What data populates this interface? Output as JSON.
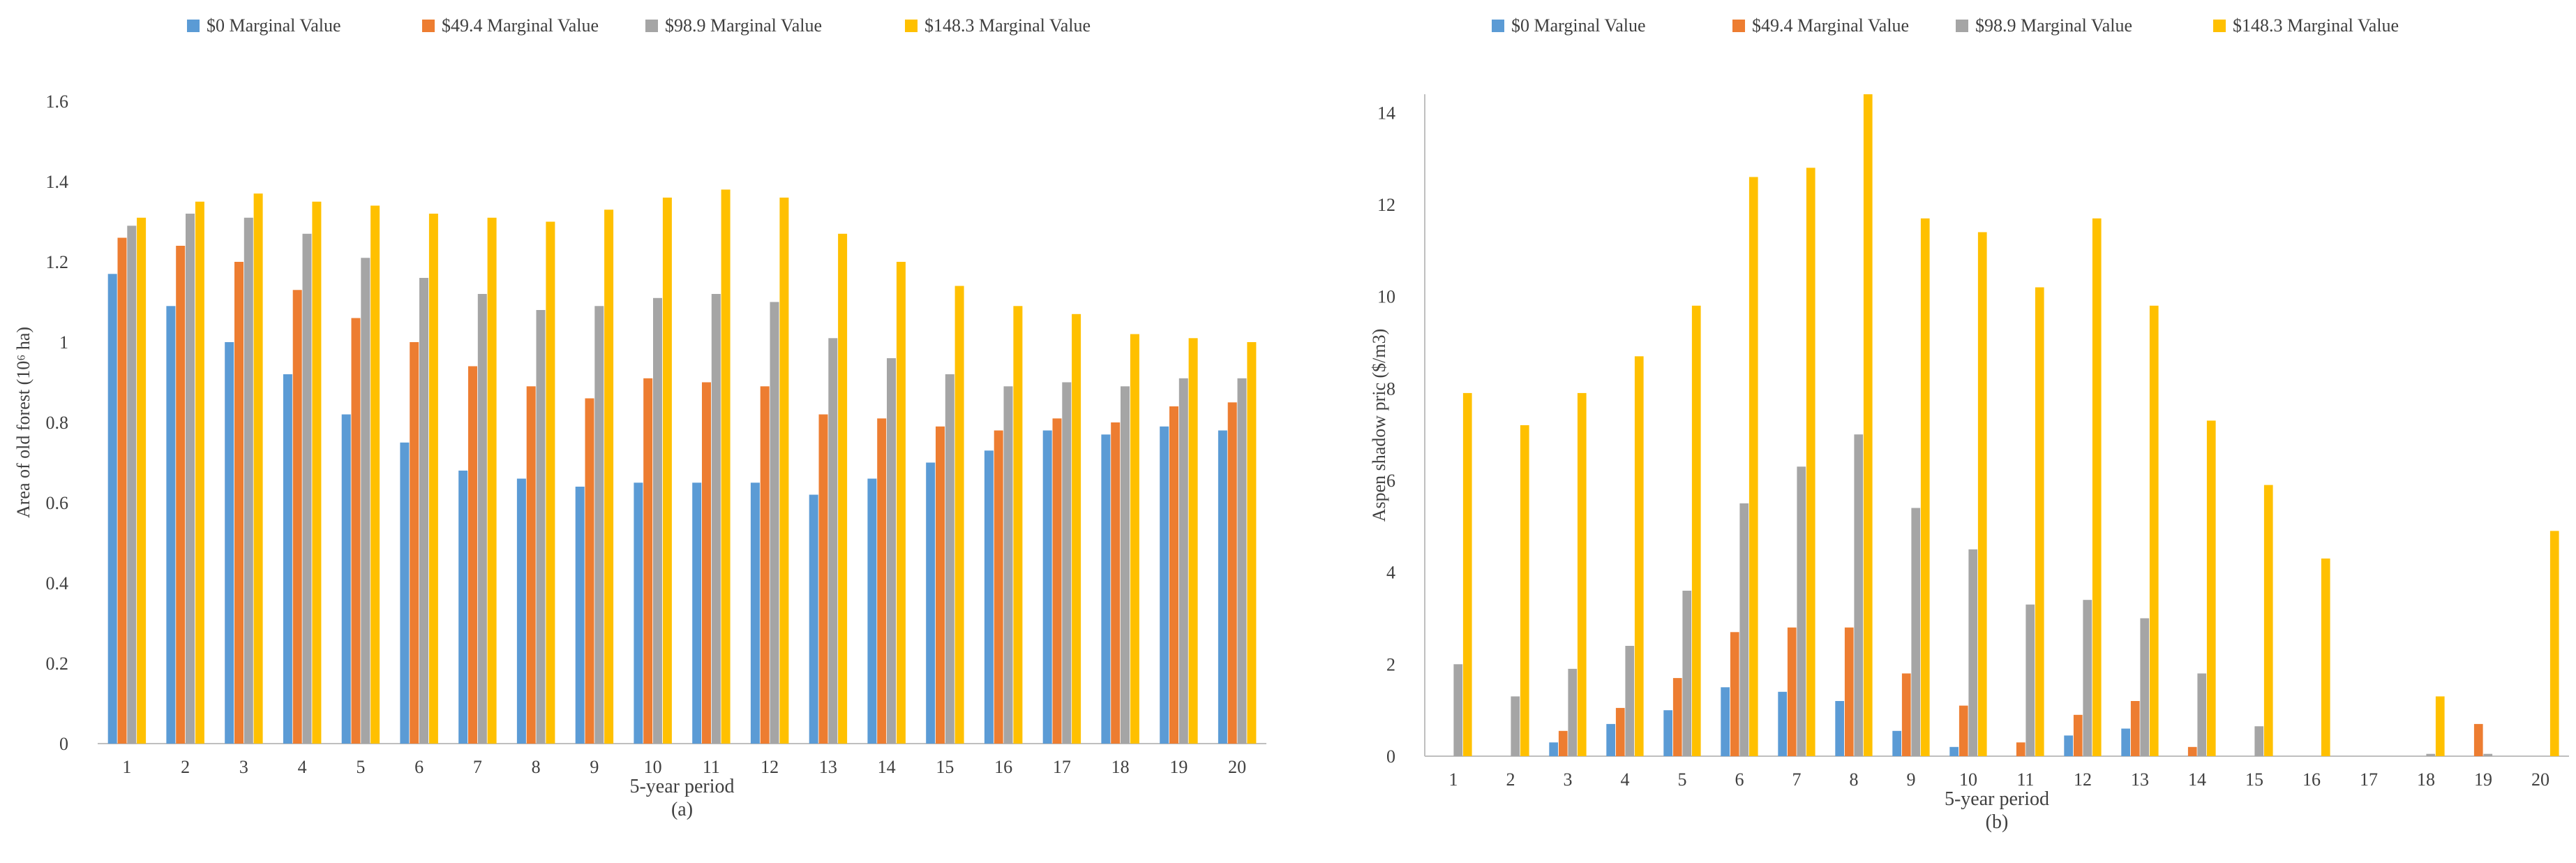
{
  "chart_data": [
    {
      "id": "a",
      "type": "bar",
      "caption": "(a)",
      "xlabel": "5-year period",
      "ylabel": "Area of old forest (10⁶ ha)",
      "ylim": [
        0,
        1.6
      ],
      "yticks": [
        0,
        0.2,
        0.4,
        0.6,
        0.8,
        1,
        1.2,
        1.4,
        1.6
      ],
      "ytick_labels": [
        "0",
        "0.2",
        "0.4",
        "0.6",
        "0.8",
        "1",
        "1.2",
        "1.4",
        "1.6"
      ],
      "categories": [
        "1",
        "2",
        "3",
        "4",
        "5",
        "6",
        "7",
        "8",
        "9",
        "10",
        "11",
        "12",
        "13",
        "14",
        "15",
        "16",
        "17",
        "18",
        "19",
        "20"
      ],
      "legend_position": "top",
      "series": [
        {
          "name": "$0 Marginal Value",
          "color": "#5B9BD5",
          "values": [
            1.17,
            1.09,
            1.0,
            0.92,
            0.82,
            0.75,
            0.68,
            0.66,
            0.64,
            0.65,
            0.65,
            0.65,
            0.62,
            0.66,
            0.7,
            0.73,
            0.78,
            0.77,
            0.79,
            0.78
          ]
        },
        {
          "name": "$49.4 Marginal Value",
          "color": "#ED7D31",
          "values": [
            1.26,
            1.24,
            1.2,
            1.13,
            1.06,
            1.0,
            0.94,
            0.89,
            0.86,
            0.91,
            0.9,
            0.89,
            0.82,
            0.81,
            0.79,
            0.78,
            0.81,
            0.8,
            0.84,
            0.85
          ]
        },
        {
          "name": "$98.9 Marginal Value",
          "color": "#A5A5A5",
          "values": [
            1.29,
            1.32,
            1.31,
            1.27,
            1.21,
            1.16,
            1.12,
            1.08,
            1.09,
            1.11,
            1.12,
            1.1,
            1.01,
            0.96,
            0.92,
            0.89,
            0.9,
            0.89,
            0.91,
            0.91
          ]
        },
        {
          "name": "$148.3 Marginal Value",
          "color": "#FFC000",
          "values": [
            1.31,
            1.35,
            1.37,
            1.35,
            1.34,
            1.32,
            1.31,
            1.3,
            1.33,
            1.36,
            1.38,
            1.36,
            1.27,
            1.2,
            1.14,
            1.09,
            1.07,
            1.02,
            1.01,
            1.0
          ]
        }
      ]
    },
    {
      "id": "b",
      "type": "bar",
      "caption": "(b)",
      "xlabel": "5-year period",
      "ylabel": "Aspen shadow pric ($/m3)",
      "ylim": [
        0,
        14.4
      ],
      "yticks": [
        0,
        2,
        4,
        6,
        8,
        10,
        12,
        14
      ],
      "ytick_labels": [
        "0",
        "2",
        "4",
        "6",
        "8",
        "10",
        "12",
        "14"
      ],
      "categories": [
        "1",
        "2",
        "3",
        "4",
        "5",
        "6",
        "7",
        "8",
        "9",
        "10",
        "11",
        "12",
        "13",
        "14",
        "15",
        "16",
        "17",
        "18",
        "19",
        "20"
      ],
      "legend_position": "top",
      "series": [
        {
          "name": "$0 Marginal Value",
          "color": "#5B9BD5",
          "values": [
            0,
            0,
            0.3,
            0.7,
            1.0,
            1.5,
            1.4,
            1.2,
            0.55,
            0.2,
            0,
            0.45,
            0.6,
            0,
            0,
            0,
            0,
            0,
            0,
            0
          ]
        },
        {
          "name": "$49.4 Marginal Value",
          "color": "#ED7D31",
          "values": [
            0,
            0,
            0.55,
            1.05,
            1.7,
            2.7,
            2.8,
            2.8,
            1.8,
            1.1,
            0.3,
            0.9,
            1.2,
            0.2,
            0,
            0,
            0,
            0,
            0.7,
            0
          ]
        },
        {
          "name": "$98.9 Marginal Value",
          "color": "#A5A5A5",
          "values": [
            2.0,
            1.3,
            1.9,
            2.4,
            3.6,
            5.5,
            6.3,
            7.0,
            5.4,
            4.5,
            3.3,
            3.4,
            3.0,
            1.8,
            0.65,
            0,
            0,
            0.05,
            0.05,
            0
          ]
        },
        {
          "name": "$148.3 Marginal Value",
          "color": "#FFC000",
          "values": [
            7.9,
            7.2,
            7.9,
            8.7,
            9.8,
            12.6,
            12.8,
            14.4,
            11.7,
            11.4,
            10.2,
            11.7,
            9.8,
            7.3,
            5.9,
            4.3,
            0,
            1.3,
            0,
            4.9
          ]
        }
      ]
    }
  ]
}
